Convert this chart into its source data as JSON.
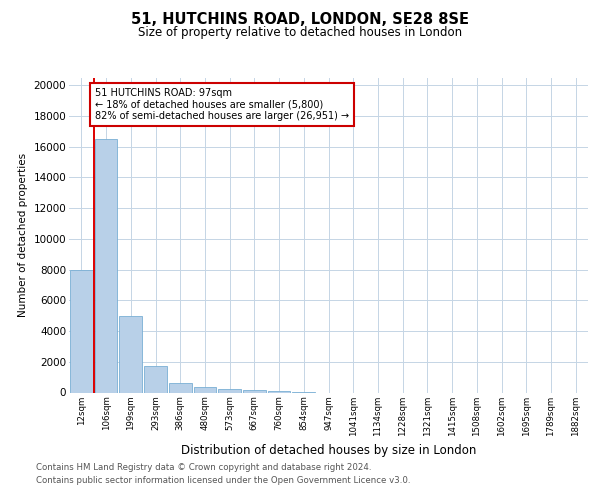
{
  "title1": "51, HUTCHINS ROAD, LONDON, SE28 8SE",
  "title2": "Size of property relative to detached houses in London",
  "xlabel": "Distribution of detached houses by size in London",
  "ylabel": "Number of detached properties",
  "categories": [
    "12sqm",
    "106sqm",
    "199sqm",
    "293sqm",
    "386sqm",
    "480sqm",
    "573sqm",
    "667sqm",
    "760sqm",
    "854sqm",
    "947sqm",
    "1041sqm",
    "1134sqm",
    "1228sqm",
    "1321sqm",
    "1415sqm",
    "1508sqm",
    "1602sqm",
    "1695sqm",
    "1789sqm",
    "1882sqm"
  ],
  "bar_heights": [
    8000,
    16500,
    5000,
    1700,
    600,
    350,
    200,
    150,
    100,
    50,
    0,
    0,
    0,
    0,
    0,
    0,
    0,
    0,
    0,
    0,
    0
  ],
  "bar_color": "#b8d0e8",
  "bar_edge_color": "#7aafd4",
  "grid_color": "#c5d5e5",
  "annotation_text_line1": "51 HUTCHINS ROAD: 97sqm",
  "annotation_text_line2": "← 18% of detached houses are smaller (5,800)",
  "annotation_text_line3": "82% of semi-detached houses are larger (26,951) →",
  "red_line_color": "#dd0000",
  "annotation_box_facecolor": "#ffffff",
  "annotation_box_edgecolor": "#cc0000",
  "ylim": [
    0,
    20500
  ],
  "yticks": [
    0,
    2000,
    4000,
    6000,
    8000,
    10000,
    12000,
    14000,
    16000,
    18000,
    20000
  ],
  "footer1": "Contains HM Land Registry data © Crown copyright and database right 2024.",
  "footer2": "Contains public sector information licensed under the Open Government Licence v3.0."
}
